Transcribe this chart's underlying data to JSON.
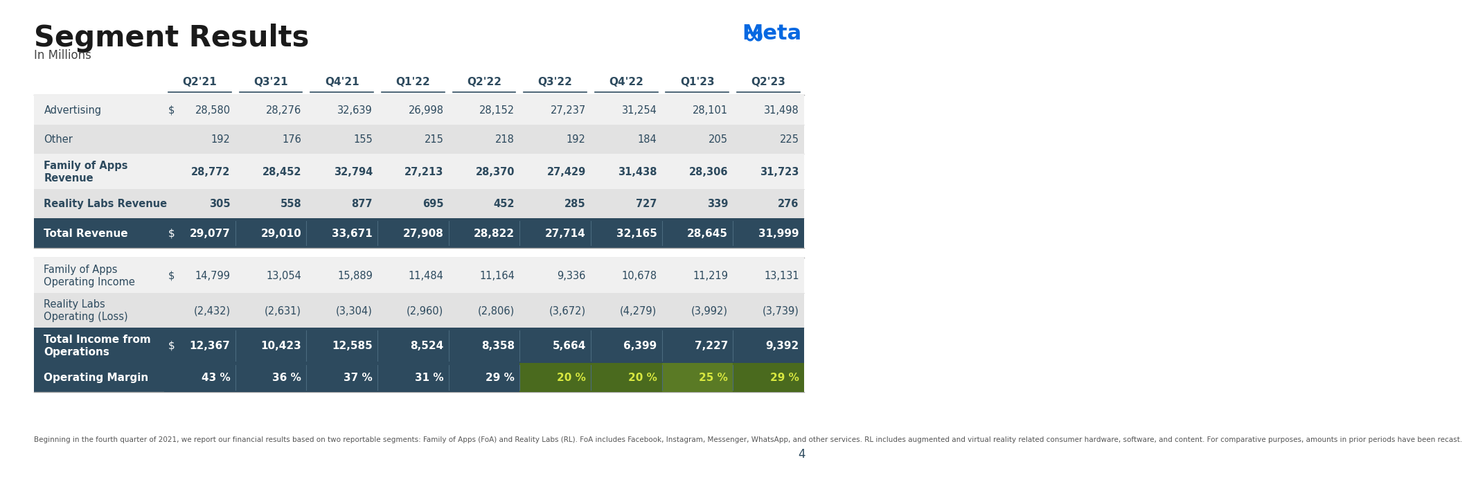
{
  "title": "Segment Results",
  "subtitle": "In Millions",
  "columns": [
    "",
    "Q2'21",
    "Q3'21",
    "Q4'21",
    "Q1'22",
    "Q2'22",
    "Q3'22",
    "Q4'22",
    "Q1'23",
    "Q2'23"
  ],
  "section1_rows": [
    {
      "label": "Advertising",
      "dollar": true,
      "bold": false,
      "values": [
        "28,580",
        "28,276",
        "32,639",
        "26,998",
        "28,152",
        "27,237",
        "31,254",
        "28,101",
        "31,498"
      ]
    },
    {
      "label": "Other",
      "dollar": false,
      "bold": false,
      "values": [
        "192",
        "176",
        "155",
        "215",
        "218",
        "192",
        "184",
        "205",
        "225"
      ]
    },
    {
      "label": "Family of Apps\nRevenue",
      "bold": true,
      "dollar": false,
      "values": [
        "28,772",
        "28,452",
        "32,794",
        "27,213",
        "28,370",
        "27,429",
        "31,438",
        "28,306",
        "31,723"
      ]
    },
    {
      "label": "Reality Labs Revenue",
      "bold": true,
      "dollar": false,
      "values": [
        "305",
        "558",
        "877",
        "695",
        "452",
        "285",
        "727",
        "339",
        "276"
      ]
    }
  ],
  "total_revenue_row": {
    "label": "Total Revenue",
    "dollar": true,
    "values": [
      "29,077",
      "29,010",
      "33,671",
      "27,908",
      "28,822",
      "27,714",
      "32,165",
      "28,645",
      "31,999"
    ]
  },
  "section2_rows": [
    {
      "label": "Family of Apps\nOperating Income",
      "dollar": true,
      "bold": false,
      "values": [
        "14,799",
        "13,054",
        "15,889",
        "11,484",
        "11,164",
        "9,336",
        "10,678",
        "11,219",
        "13,131"
      ]
    },
    {
      "label": "Reality Labs\nOperating (Loss)",
      "dollar": false,
      "bold": false,
      "values": [
        "(2,432)",
        "(2,631)",
        "(3,304)",
        "(2,960)",
        "(2,806)",
        "(3,672)",
        "(4,279)",
        "(3,992)",
        "(3,739)"
      ]
    }
  ],
  "total_ops_row": {
    "label": "Total Income from\nOperations",
    "dollar": true,
    "values": [
      "12,367",
      "10,423",
      "12,585",
      "8,524",
      "8,358",
      "5,664",
      "6,399",
      "7,227",
      "9,392"
    ]
  },
  "margin_row": {
    "label": "Operating Margin",
    "values": [
      "43 %",
      "36 %",
      "37 %",
      "31 %",
      "29 %",
      "20 %",
      "20 %",
      "25 %",
      "29 %"
    ],
    "highlight_from": 5,
    "cell_colors": [
      "#2d4a5e",
      "#2d4a5e",
      "#2d4a5e",
      "#2d4a5e",
      "#2d4a5e",
      "#4a6a1e",
      "#4a6a1e",
      "#5a7a25",
      "#4a6a1e"
    ],
    "text_colors": [
      "#ffffff",
      "#ffffff",
      "#ffffff",
      "#ffffff",
      "#ffffff",
      "#d8e840",
      "#d8e840",
      "#d8e840",
      "#d8e840"
    ]
  },
  "footnote": "Beginning in the fourth quarter of 2021, we report our financial results based on two reportable segments: Family of Apps (FoA) and Reality Labs (RL). FoA includes Facebook, Instagram, Messenger, WhatsApp, and other services. RL includes augmented and virtual reality related consumer hardware, software, and content. For comparative purposes, amounts in prior periods have been recast.",
  "bg_color": "#ffffff",
  "dark_row_color": "#2d4a5e",
  "light_row_color1": "#f0f0f0",
  "light_row_color2": "#e2e2e2",
  "dark_text": "#2d4a5e",
  "light_text": "#ffffff",
  "header_text_color": "#2d4a5e",
  "title_color": "#1a1a1a",
  "subtitle_color": "#444444",
  "meta_blue": "#0668e1",
  "sep_color": "#4a6a7e",
  "divider_color": "#aaaaaa",
  "row_divider_color": "#cccccc"
}
